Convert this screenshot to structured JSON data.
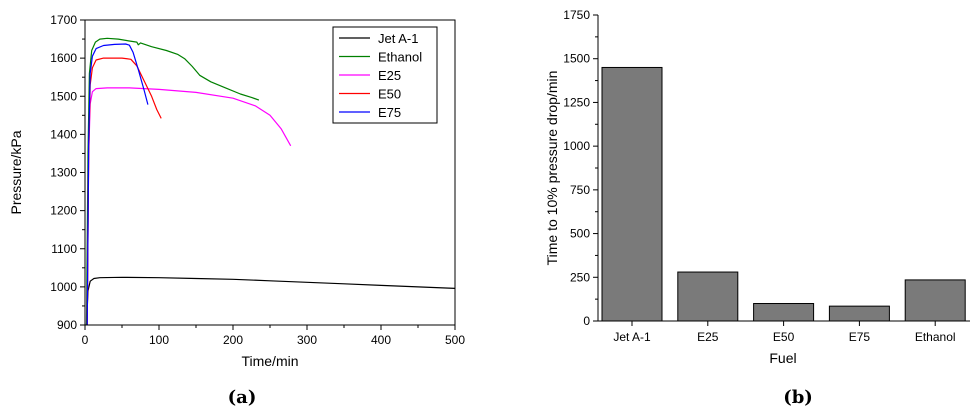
{
  "chart_data": [
    {
      "type": "line",
      "caption": "(a)",
      "xlabel": "Time/min",
      "ylabel": "Pressure/kPa",
      "xlim": [
        0,
        500
      ],
      "ylim": [
        900,
        1700
      ],
      "x_ticks": [
        0,
        100,
        200,
        300,
        400,
        500
      ],
      "y_ticks": [
        900,
        1000,
        1100,
        1200,
        1300,
        1400,
        1500,
        1600,
        1700
      ],
      "grid": false,
      "legend_position": "top-right",
      "series": [
        {
          "name": "Jet A-1",
          "color": "#000000",
          "points": [
            [
              2,
              900
            ],
            [
              4,
              990
            ],
            [
              7,
              1015
            ],
            [
              12,
              1022
            ],
            [
              20,
              1024
            ],
            [
              50,
              1025
            ],
            [
              100,
              1024
            ],
            [
              150,
              1022
            ],
            [
              200,
              1020
            ],
            [
              250,
              1016
            ],
            [
              300,
              1012
            ],
            [
              350,
              1008
            ],
            [
              400,
              1004
            ],
            [
              450,
              1000
            ],
            [
              500,
              996
            ]
          ]
        },
        {
          "name": "Ethanol",
          "color": "#008000",
          "points": [
            [
              2,
              900
            ],
            [
              4,
              1350
            ],
            [
              6,
              1560
            ],
            [
              9,
              1620
            ],
            [
              14,
              1642
            ],
            [
              20,
              1650
            ],
            [
              30,
              1652
            ],
            [
              45,
              1650
            ],
            [
              60,
              1645
            ],
            [
              70,
              1642
            ],
            [
              72,
              1635
            ],
            [
              75,
              1640
            ],
            [
              90,
              1630
            ],
            [
              110,
              1620
            ],
            [
              125,
              1610
            ],
            [
              135,
              1598
            ],
            [
              145,
              1578
            ],
            [
              155,
              1555
            ],
            [
              170,
              1538
            ],
            [
              190,
              1522
            ],
            [
              210,
              1506
            ],
            [
              225,
              1497
            ],
            [
              235,
              1490
            ]
          ]
        },
        {
          "name": "E25",
          "color": "#ff00ff",
          "points": [
            [
              3,
              900
            ],
            [
              5,
              1350
            ],
            [
              7,
              1480
            ],
            [
              10,
              1512
            ],
            [
              15,
              1520
            ],
            [
              30,
              1522
            ],
            [
              60,
              1522
            ],
            [
              100,
              1518
            ],
            [
              150,
              1510
            ],
            [
              200,
              1495
            ],
            [
              230,
              1475
            ],
            [
              250,
              1450
            ],
            [
              265,
              1415
            ],
            [
              278,
              1370
            ]
          ]
        },
        {
          "name": "E50",
          "color": "#ff0000",
          "points": [
            [
              3,
              900
            ],
            [
              5,
              1350
            ],
            [
              7,
              1530
            ],
            [
              10,
              1575
            ],
            [
              15,
              1595
            ],
            [
              25,
              1600
            ],
            [
              50,
              1600
            ],
            [
              62,
              1597
            ],
            [
              70,
              1580
            ],
            [
              80,
              1540
            ],
            [
              90,
              1500
            ],
            [
              97,
              1465
            ],
            [
              103,
              1442
            ]
          ]
        },
        {
          "name": "E75",
          "color": "#0000ff",
          "points": [
            [
              3,
              900
            ],
            [
              5,
              1380
            ],
            [
              7,
              1560
            ],
            [
              10,
              1605
            ],
            [
              15,
              1625
            ],
            [
              25,
              1633
            ],
            [
              40,
              1636
            ],
            [
              55,
              1637
            ],
            [
              60,
              1634
            ],
            [
              65,
              1615
            ],
            [
              72,
              1570
            ],
            [
              80,
              1515
            ],
            [
              85,
              1478
            ]
          ]
        }
      ]
    },
    {
      "type": "bar",
      "caption": "(b)",
      "xlabel": "Fuel",
      "ylabel": "Time to 10% pressure drop/min",
      "ylim": [
        0,
        1750
      ],
      "y_ticks": [
        0,
        250,
        500,
        750,
        1000,
        1250,
        1500,
        1750
      ],
      "grid": false,
      "bar_color": "#7a7a7a",
      "categories": [
        "Jet A-1",
        "E25",
        "E50",
        "E75",
        "Ethanol"
      ],
      "values": [
        1450,
        280,
        100,
        85,
        235
      ]
    }
  ]
}
